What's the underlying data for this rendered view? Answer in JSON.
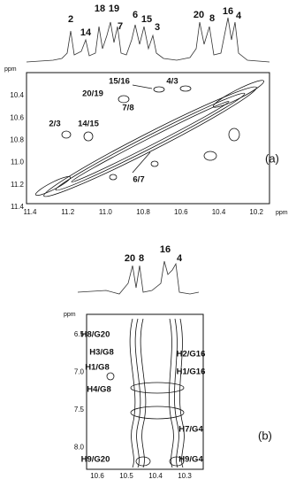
{
  "panels": [
    {
      "label": "(a)",
      "peaks_1d": [
        "2",
        "14",
        "18",
        "19",
        "7",
        "6",
        "15",
        "3",
        "20",
        "8",
        "16",
        "4"
      ],
      "y_unit": "ppm",
      "y_ticks": [
        "10.4",
        "10.6",
        "10.8",
        "11.0",
        "11.2",
        "11.4"
      ],
      "x_unit": "ppm",
      "x_ticks": [
        "11.4",
        "11.2",
        "11.0",
        "10.8",
        "10.6",
        "10.4",
        "10.2"
      ],
      "cross_peaks": [
        "15/16",
        "4/3",
        "20/19",
        "7/8",
        "2/3",
        "14/15",
        "6/7"
      ]
    },
    {
      "label": "(b)",
      "peaks_1d": [
        "20",
        "8",
        "16",
        "4"
      ],
      "y_unit": "ppm",
      "y_ticks": [
        "6.5",
        "7.0",
        "7.5",
        "8.0"
      ],
      "x_ticks": [
        "10.6",
        "10.5",
        "10.4",
        "10.3"
      ],
      "cross_peaks": [
        "H8/G20",
        "H3/G8",
        "H1/G8",
        "H4/G8",
        "H2/G16",
        "H1/G16",
        "H7/G4",
        "H9/G20",
        "H9/G4"
      ]
    }
  ]
}
